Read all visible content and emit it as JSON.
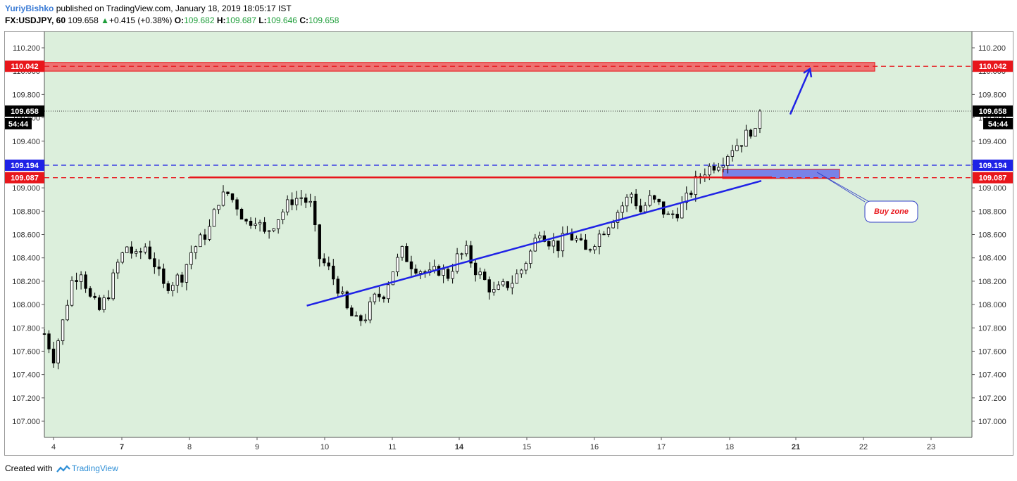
{
  "header": {
    "author": "YuriyBishko",
    "published_text": "published on TradingView.com, January 18, 2019 18:05:17 IST",
    "symbol": "FX:USDJPY, 60",
    "price": "109.658",
    "change": "+0.415 (+0.38%)",
    "open_label": "O:",
    "open": "109.682",
    "high_label": "H:",
    "high": "109.687",
    "low_label": "L:",
    "low": "109.646",
    "close_label": "C:",
    "close": "109.658"
  },
  "footer": {
    "created_text": "Created with",
    "brand": "TradingView"
  },
  "colors": {
    "background": "#dcefdc",
    "resistance": "#e8161b",
    "support": "#1f22e6",
    "zone_fill": "#6e75e8",
    "candle": "#000000"
  },
  "chart_data": {
    "type": "candlestick",
    "symbol": "FX:USDJPY",
    "interval": "60",
    "ylim": [
      106.85,
      110.35
    ],
    "y_ticks": [
      "110.200",
      "110.000",
      "109.800",
      "109.600",
      "109.400",
      "109.200",
      "109.000",
      "108.800",
      "108.600",
      "108.400",
      "108.200",
      "108.000",
      "107.800",
      "107.600",
      "107.400",
      "107.200",
      "107.000"
    ],
    "x_ticks": [
      {
        "label": "4",
        "bold": false
      },
      {
        "label": "7",
        "bold": true
      },
      {
        "label": "8",
        "bold": false
      },
      {
        "label": "9",
        "bold": false
      },
      {
        "label": "10",
        "bold": false
      },
      {
        "label": "11",
        "bold": false
      },
      {
        "label": "14",
        "bold": true
      },
      {
        "label": "15",
        "bold": false
      },
      {
        "label": "16",
        "bold": false
      },
      {
        "label": "17",
        "bold": false
      },
      {
        "label": "18",
        "bold": false
      },
      {
        "label": "21",
        "bold": true
      },
      {
        "label": "22",
        "bold": false
      },
      {
        "label": "23",
        "bold": false
      }
    ],
    "price_path": [
      [
        0,
        107.75
      ],
      [
        2,
        107.55
      ],
      [
        4,
        107.85
      ],
      [
        6,
        108.2
      ],
      [
        8,
        108.3
      ],
      [
        10,
        108.05
      ],
      [
        12,
        107.95
      ],
      [
        14,
        108.1
      ],
      [
        16,
        108.35
      ],
      [
        18,
        108.5
      ],
      [
        20,
        108.4
      ],
      [
        22,
        108.5
      ],
      [
        24,
        108.35
      ],
      [
        26,
        108.15
      ],
      [
        28,
        108.2
      ],
      [
        30,
        108.25
      ],
      [
        32,
        108.45
      ],
      [
        34,
        108.55
      ],
      [
        36,
        108.65
      ],
      [
        38,
        108.9
      ],
      [
        40,
        108.95
      ],
      [
        42,
        108.85
      ],
      [
        44,
        108.7
      ],
      [
        46,
        108.75
      ],
      [
        48,
        108.6
      ],
      [
        50,
        108.7
      ],
      [
        52,
        108.8
      ],
      [
        54,
        108.9
      ],
      [
        56,
        108.92
      ],
      [
        58,
        108.85
      ],
      [
        60,
        108.4
      ],
      [
        62,
        108.3
      ],
      [
        64,
        108.15
      ],
      [
        66,
        107.95
      ],
      [
        68,
        107.85
      ],
      [
        70,
        107.9
      ],
      [
        72,
        108.05
      ],
      [
        74,
        108.1
      ],
      [
        76,
        108.3
      ],
      [
        78,
        108.45
      ],
      [
        80,
        108.35
      ],
      [
        82,
        108.3
      ],
      [
        84,
        108.25
      ],
      [
        86,
        108.3
      ],
      [
        88,
        108.25
      ],
      [
        90,
        108.4
      ],
      [
        92,
        108.45
      ],
      [
        94,
        108.3
      ],
      [
        96,
        108.2
      ],
      [
        98,
        108.1
      ],
      [
        100,
        108.15
      ],
      [
        102,
        108.2
      ],
      [
        104,
        108.3
      ],
      [
        106,
        108.45
      ],
      [
        108,
        108.65
      ],
      [
        110,
        108.55
      ],
      [
        112,
        108.5
      ],
      [
        114,
        108.6
      ],
      [
        116,
        108.55
      ],
      [
        118,
        108.45
      ],
      [
        120,
        108.55
      ],
      [
        122,
        108.65
      ],
      [
        124,
        108.75
      ],
      [
        126,
        108.85
      ],
      [
        128,
        108.95
      ],
      [
        130,
        108.8
      ],
      [
        132,
        108.9
      ],
      [
        134,
        108.85
      ],
      [
        136,
        108.75
      ],
      [
        138,
        108.8
      ],
      [
        140,
        108.9
      ],
      [
        142,
        109.05
      ],
      [
        144,
        109.15
      ],
      [
        146,
        109.2
      ],
      [
        148,
        109.25
      ],
      [
        150,
        109.35
      ],
      [
        152,
        109.4
      ],
      [
        154,
        109.5
      ],
      [
        155,
        109.45
      ],
      [
        156,
        109.658
      ]
    ],
    "horizontal_levels": [
      {
        "label": "110.042",
        "value": 110.042,
        "color": "#e8161b",
        "style": "dashed"
      },
      {
        "label": "109.194",
        "value": 109.194,
        "color": "#1f22e6",
        "style": "dashed"
      },
      {
        "label": "109.087",
        "value": 109.087,
        "color": "#e8161b",
        "style": "dashed"
      }
    ],
    "resistance_zone": {
      "low": 110.0,
      "high": 110.075,
      "x_start_day": "4",
      "x_end_day": "22"
    },
    "buy_zone": {
      "low": 109.08,
      "high": 109.16,
      "x_start_day": "18",
      "x_end_day": "22"
    },
    "solid_resistance_line": {
      "value": 109.09,
      "x_start_day": "8",
      "x_end_day": "18"
    },
    "trendline": [
      {
        "day_index": 48,
        "price": 107.99
      },
      {
        "day_index": 152,
        "price": 109.06
      }
    ],
    "projection_arrow": [
      {
        "day_index": 157,
        "price": 109.63
      },
      {
        "day_index": 162,
        "price": 110.02
      }
    ],
    "last_price": {
      "label": "109.658",
      "value": 109.658,
      "countdown": "54:44"
    },
    "annotation": {
      "text": "Buy zone"
    }
  }
}
